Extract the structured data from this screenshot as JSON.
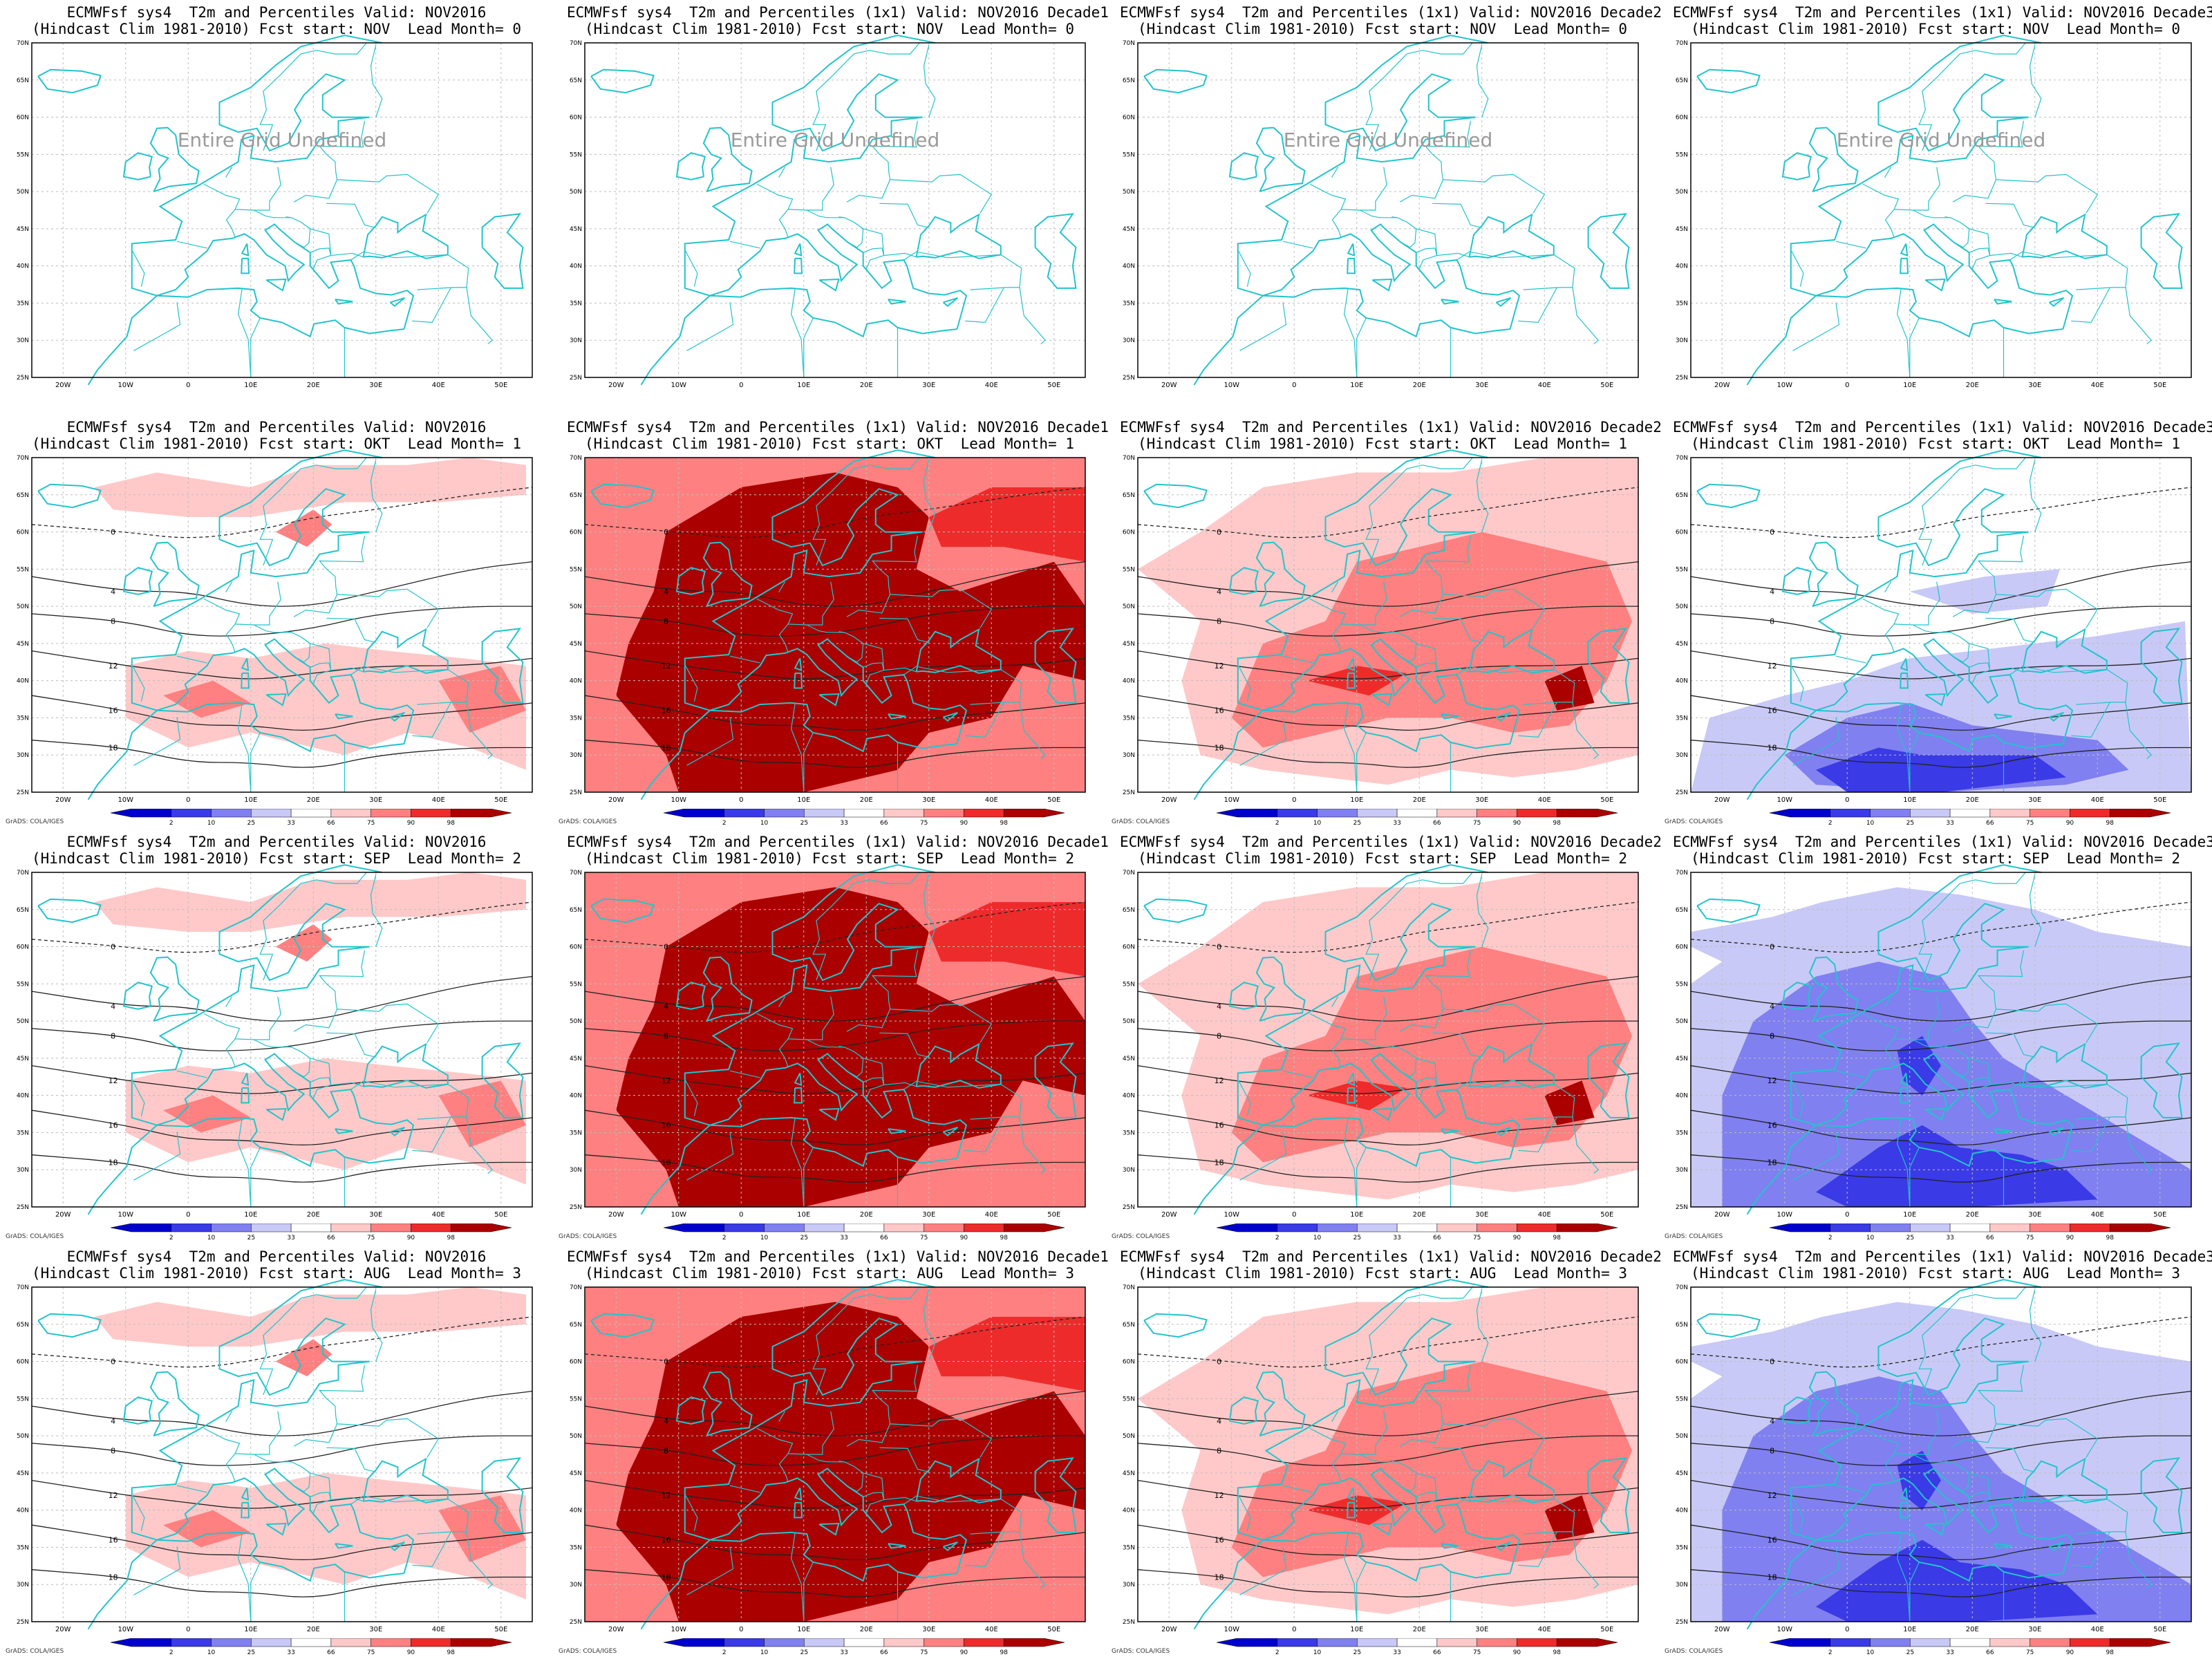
{
  "title_prefix": "ECMWFsf sys4  T2m and Percentiles",
  "colorbar": {
    "ticks": [
      "2",
      "10",
      "25",
      "33",
      "66",
      "75",
      "90",
      "98"
    ],
    "colors": [
      "#0000cc",
      "#3a3ae6",
      "#8080f0",
      "#c9c9f7",
      "#ffffff",
      "#ffc9c9",
      "#ff8080",
      "#ee2b2b",
      "#aa0000"
    ],
    "credit": "GrADS: COLA/IGES"
  },
  "axes": {
    "lon_labels": [
      "20W",
      "10W",
      "0",
      "10E",
      "20E",
      "30E",
      "40E",
      "50E"
    ],
    "lat_labels": [
      "70N",
      "65N",
      "60N",
      "55N",
      "50N",
      "45N",
      "40N",
      "35N",
      "30N",
      "25N"
    ],
    "lon_range": [
      -25,
      55
    ],
    "lat_range": [
      25,
      70
    ]
  },
  "undefined_text": "Entire Grid Undefined",
  "panels": [
    {
      "title1": "ECMWFsf sys4  T2m and Percentiles Valid: NOV2016",
      "title2": "(Hindcast Clim 1981-2010) Fcst start: NOV  Lead Month= 0",
      "undefined": true,
      "scheme": "none"
    },
    {
      "title1": "ECMWFsf sys4  T2m and Percentiles (1x1) Valid: NOV2016 Decade1",
      "title2": "(Hindcast Clim 1981-2010) Fcst start: NOV  Lead Month= 0",
      "undefined": true,
      "scheme": "none"
    },
    {
      "title1": "ECMWFsf sys4  T2m and Percentiles (1x1) Valid: NOV2016 Decade2",
      "title2": "(Hindcast Clim 1981-2010) Fcst start: NOV  Lead Month= 0",
      "undefined": true,
      "scheme": "none"
    },
    {
      "title1": "ECMWFsf sys4  T2m and Percentiles (1x1) Valid: NOV2016 Decade3",
      "title2": "(Hindcast Clim 1981-2010) Fcst start: NOV  Lead Month= 0",
      "undefined": true,
      "scheme": "none"
    },
    {
      "title1": "ECMWFsf sys4  T2m and Percentiles Valid: NOV2016",
      "title2": "(Hindcast Clim 1981-2010) Fcst start: OKT  Lead Month= 1",
      "undefined": false,
      "scheme": "warm-light"
    },
    {
      "title1": "ECMWFsf sys4  T2m and Percentiles (1x1) Valid: NOV2016 Decade1",
      "title2": "(Hindcast Clim 1981-2010) Fcst start: OKT  Lead Month= 1",
      "undefined": false,
      "scheme": "warm-extreme"
    },
    {
      "title1": "ECMWFsf sys4  T2m and Percentiles (1x1) Valid: NOV2016 Decade2",
      "title2": "(Hindcast Clim 1981-2010) Fcst start: OKT  Lead Month= 1",
      "undefined": false,
      "scheme": "warm-moderate"
    },
    {
      "title1": "ECMWFsf sys4  T2m and Percentiles (1x1) Valid: NOV2016 Decade3",
      "title2": "(Hindcast Clim 1981-2010) Fcst start: OKT  Lead Month= 1",
      "undefined": false,
      "scheme": "cold-south"
    },
    {
      "title1": "ECMWFsf sys4  T2m and Percentiles Valid: NOV2016",
      "title2": "(Hindcast Clim 1981-2010) Fcst start: SEP  Lead Month= 2",
      "undefined": false,
      "scheme": "warm-light"
    },
    {
      "title1": "ECMWFsf sys4  T2m and Percentiles (1x1) Valid: NOV2016 Decade1",
      "title2": "(Hindcast Clim 1981-2010) Fcst start: SEP  Lead Month= 2",
      "undefined": false,
      "scheme": "warm-extreme"
    },
    {
      "title1": "ECMWFsf sys4  T2m and Percentiles (1x1) Valid: NOV2016 Decade2",
      "title2": "(Hindcast Clim 1981-2010) Fcst start: SEP  Lead Month= 2",
      "undefined": false,
      "scheme": "warm-moderate"
    },
    {
      "title1": "ECMWFsf sys4  T2m and Percentiles (1x1) Valid: NOV2016 Decade3",
      "title2": "(Hindcast Clim 1981-2010) Fcst start: SEP  Lead Month= 2",
      "undefined": false,
      "scheme": "cold-strong"
    },
    {
      "title1": "ECMWFsf sys4  T2m and Percentiles Valid: NOV2016",
      "title2": "(Hindcast Clim 1981-2010) Fcst start: AUG  Lead Month= 3",
      "undefined": false,
      "scheme": "warm-light"
    },
    {
      "title1": "ECMWFsf sys4  T2m and Percentiles (1x1) Valid: NOV2016 Decade1",
      "title2": "(Hindcast Clim 1981-2010) Fcst start: AUG  Lead Month= 3",
      "undefined": false,
      "scheme": "warm-extreme"
    },
    {
      "title1": "ECMWFsf sys4  T2m and Percentiles (1x1) Valid: NOV2016 Decade2",
      "title2": "(Hindcast Clim 1981-2010) Fcst start: AUG  Lead Month= 3",
      "undefined": false,
      "scheme": "warm-moderate"
    },
    {
      "title1": "ECMWFsf sys4  T2m and Percentiles (1x1) Valid: NOV2016 Decade3",
      "title2": "(Hindcast Clim 1981-2010) Fcst start: AUG  Lead Month= 3",
      "undefined": false,
      "scheme": "cold-strong"
    }
  ]
}
